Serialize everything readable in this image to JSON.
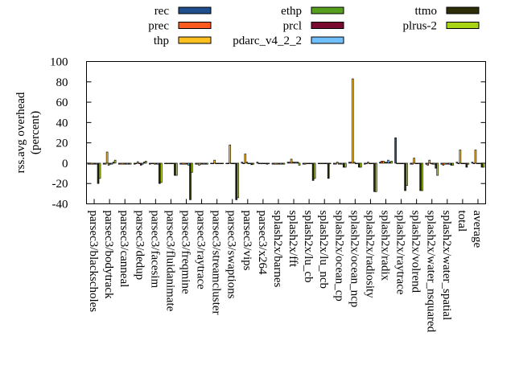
{
  "chart_data": {
    "type": "bar",
    "ylabel": [
      "rss.avg overhead",
      "(percent)"
    ],
    "ylim": [
      -40,
      100
    ],
    "yticks": [
      100,
      80,
      60,
      40,
      20,
      0,
      -20,
      -40
    ],
    "legend_placement": "top",
    "grid": false,
    "categories": [
      "parsec3/blackscholes",
      "parsec3/bodytrack",
      "parsec3/canneal",
      "parsec3/dedup",
      "parsec3/facesim",
      "parsec3/fluidanimate",
      "parsec3/freqmine",
      "parsec3/raytrace",
      "parsec3/streamcluster",
      "parsec3/swaptions",
      "parsec3/vips",
      "parsec3/x264",
      "splash2x/barnes",
      "splash2x/fft",
      "splash2x/lu_cb",
      "splash2x/lu_ncb",
      "splash2x/ocean_cp",
      "splash2x/ocean_ncp",
      "splash2x/radiosity",
      "splash2x/radix",
      "splash2x/raytrace",
      "splash2x/volrend",
      "splash2x/water_nsquared",
      "splash2x/water_spatial",
      "total",
      "average"
    ],
    "series": [
      {
        "name": "rec",
        "color": "#1f4f8f",
        "values": [
          -1,
          -1,
          -1,
          -1,
          -1,
          0,
          -1,
          -1,
          0,
          0,
          1,
          1,
          -1,
          1,
          -1,
          0,
          -1,
          1,
          -1,
          1,
          25,
          -1,
          -1,
          -1,
          1,
          1
        ]
      },
      {
        "name": "prec",
        "color": "#ff5a1f",
        "values": [
          -1,
          -1,
          -1,
          0,
          0,
          0,
          -1,
          -1,
          0,
          0,
          0,
          0,
          -1,
          1,
          -1,
          0,
          -1,
          1,
          0,
          2,
          0,
          -1,
          -2,
          -2,
          0,
          0
        ]
      },
      {
        "name": "thp",
        "color": "#ffc020",
        "values": [
          -1,
          11,
          -1,
          1.5,
          0,
          0,
          -1,
          -2,
          3,
          18,
          9,
          0,
          -1,
          4,
          0,
          0,
          1,
          83,
          1,
          2,
          0,
          5,
          3,
          -1,
          13,
          13
        ]
      },
      {
        "name": "ethp",
        "color": "#56a01e",
        "values": [
          -1,
          -2,
          -1,
          0,
          -1,
          0,
          -1,
          -1,
          0,
          0,
          1,
          0,
          -1,
          1,
          0,
          0,
          -1,
          1,
          0,
          1,
          0,
          0,
          0,
          -1,
          0,
          0
        ]
      },
      {
        "name": "prcl",
        "color": "#7a0a2e",
        "values": [
          -1,
          -1,
          -1,
          -2,
          -1,
          0,
          -1,
          -1,
          0,
          0,
          0,
          0,
          -1,
          1,
          0,
          0,
          -1,
          0,
          0,
          1,
          0,
          0,
          -1,
          -1,
          0,
          0
        ]
      },
      {
        "name": "pdarc_v4_2_2",
        "color": "#70bfff",
        "values": [
          -1,
          -1,
          -1,
          -1,
          -1,
          0,
          -2,
          -1,
          0,
          0,
          0,
          0,
          -1,
          1,
          0,
          0,
          -1,
          0,
          0,
          3,
          0,
          0,
          -1,
          -1,
          0,
          0
        ]
      },
      {
        "name": "ttmo",
        "color": "#2d2d0a",
        "values": [
          -20,
          1,
          -1,
          1,
          -20,
          -12,
          -36,
          -1,
          0,
          -36,
          -1.5,
          -1,
          -1,
          1,
          -17,
          -15,
          -4,
          -4,
          -28,
          1,
          -27,
          -27,
          -5,
          -2,
          -4,
          -4
        ]
      },
      {
        "name": "plrus-2",
        "color": "#a8d414",
        "values": [
          -15,
          3,
          -1,
          2,
          -19,
          -12,
          -9,
          -1,
          0,
          -34,
          -1,
          0,
          -1,
          -2,
          -15,
          0,
          -4,
          -4,
          -28,
          2,
          -22,
          -27,
          -12,
          -2,
          -1,
          -4
        ]
      }
    ]
  }
}
